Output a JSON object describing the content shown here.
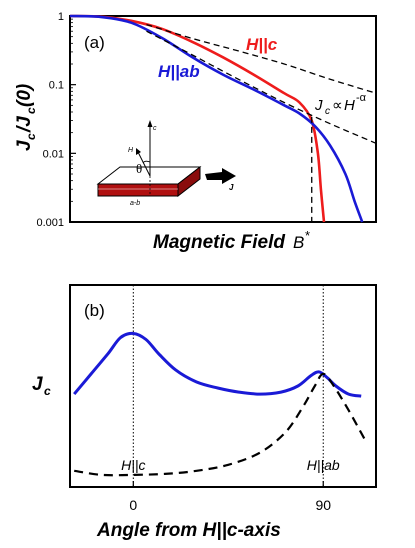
{
  "chart_data": [
    {
      "type": "line",
      "panel_label": "(a)",
      "xlabel": "Magnetic Field",
      "ylabel": "Jc/Jc(0)",
      "yscale": "log",
      "ylim": [
        0.001,
        1
      ],
      "ytick_labels": [
        "1",
        "0.1",
        "0.01",
        "0.001"
      ],
      "ytick_values": [
        1,
        0.1,
        0.01,
        0.001
      ],
      "xlim": [
        0,
        1
      ],
      "x_marker_label": "B*",
      "x_marker_value": 0.79,
      "series": [
        {
          "name": "H||c",
          "color": "#ee1c1c",
          "x": [
            0,
            0.1,
            0.2,
            0.3,
            0.4,
            0.5,
            0.6,
            0.7,
            0.75,
            0.79,
            0.81,
            0.82,
            0.83
          ],
          "y": [
            1,
            0.98,
            0.85,
            0.65,
            0.42,
            0.25,
            0.14,
            0.075,
            0.055,
            0.03,
            0.01,
            0.003,
            0.001
          ]
        },
        {
          "name": "H||ab",
          "color": "#1a1ad6",
          "x": [
            0,
            0.1,
            0.2,
            0.3,
            0.4,
            0.5,
            0.6,
            0.7,
            0.75,
            0.8,
            0.85,
            0.9,
            0.93,
            0.955
          ],
          "y": [
            1,
            0.97,
            0.8,
            0.48,
            0.25,
            0.14,
            0.085,
            0.05,
            0.038,
            0.025,
            0.013,
            0.005,
            0.002,
            0.001
          ]
        },
        {
          "name": "Jc ∝ H^-α",
          "style": "dashed",
          "color": "#000000",
          "x": [
            0.25,
            0.4,
            0.55,
            0.7,
            0.85,
            1.0
          ],
          "y": [
            0.75,
            0.47,
            0.31,
            0.2,
            0.12,
            0.075
          ]
        },
        {
          "name": "Jc ∝ H^-α (H||ab)",
          "style": "dashed",
          "color": "#000000",
          "x": [
            0.25,
            0.4,
            0.55,
            0.7,
            0.85,
            1.0
          ],
          "y": [
            0.6,
            0.27,
            0.12,
            0.055,
            0.027,
            0.014
          ]
        }
      ],
      "annotations": [
        "H||c",
        "H||ab",
        "Jc∝ H-α"
      ],
      "inset_labels": {
        "c": "c",
        "H": "H",
        "theta": "θ",
        "ab": "a-b",
        "J": "J"
      }
    },
    {
      "type": "line",
      "panel_label": "(b)",
      "xlabel": "Angle from H||c-axis",
      "ylabel": "Jc",
      "xlim": [
        -30,
        115
      ],
      "xtick_labels": [
        "0",
        "90"
      ],
      "xtick_values": [
        0,
        90
      ],
      "vlines": [
        {
          "x": 0,
          "label": "H||c"
        },
        {
          "x": 90,
          "label": "H||ab"
        }
      ],
      "series": [
        {
          "name": "solid",
          "color": "#1a1ad6",
          "x": [
            -28,
            -20,
            -12,
            -6,
            0,
            6,
            12,
            20,
            30,
            40,
            50,
            60,
            70,
            78,
            84,
            88,
            92,
            96,
            102,
            108
          ],
          "y": [
            0.46,
            0.56,
            0.66,
            0.74,
            0.76,
            0.73,
            0.66,
            0.58,
            0.52,
            0.49,
            0.47,
            0.46,
            0.47,
            0.5,
            0.55,
            0.57,
            0.54,
            0.5,
            0.46,
            0.45
          ]
        },
        {
          "name": "dashed",
          "style": "dashed",
          "color": "#000000",
          "x": [
            -28,
            -15,
            0,
            15,
            30,
            45,
            60,
            72,
            80,
            86,
            90,
            95,
            102,
            110
          ],
          "y": [
            0.08,
            0.06,
            0.06,
            0.065,
            0.08,
            0.11,
            0.17,
            0.27,
            0.39,
            0.5,
            0.56,
            0.5,
            0.38,
            0.23
          ]
        }
      ]
    }
  ]
}
